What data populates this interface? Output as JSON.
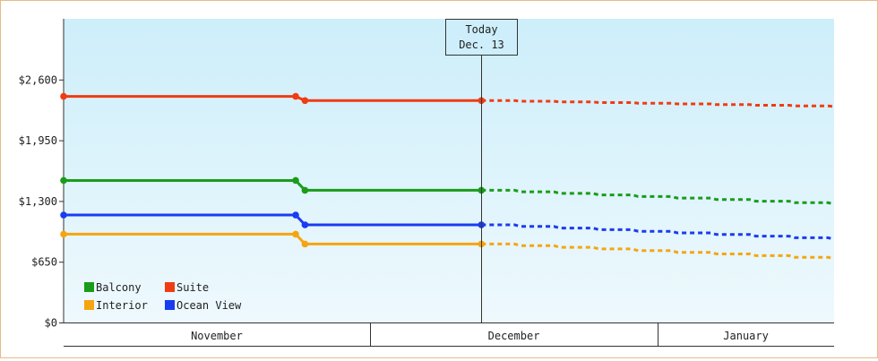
{
  "chart_data": {
    "type": "line",
    "title": "",
    "xlabel": "",
    "ylabel": "",
    "ylim": [
      0,
      3250
    ],
    "y_ticks": [
      0,
      650,
      1300,
      1950,
      2600
    ],
    "y_tick_labels": [
      "$0",
      "$650",
      "$1,300",
      "$1,950",
      "$2,600"
    ],
    "x_range": [
      "2023-10-29",
      "2024-01-20"
    ],
    "month_labels": [
      {
        "label": "November",
        "start": "2023-10-29",
        "end": "2023-11-30"
      },
      {
        "label": "December",
        "start": "2023-12-01",
        "end": "2023-12-31"
      },
      {
        "label": "January",
        "start": "2024-01-01",
        "end": "2024-01-20"
      }
    ],
    "today": {
      "line1": "Today",
      "line2": "Dec. 13",
      "date": "2023-12-13"
    },
    "grid": false,
    "legend_position": "bottom-left",
    "series": [
      {
        "name": "Suite",
        "color": "#f03c12",
        "actual": [
          [
            "2023-10-29",
            2420
          ],
          [
            "2023-11-23",
            2420
          ],
          [
            "2023-11-24",
            2375
          ],
          [
            "2023-12-13",
            2375
          ]
        ],
        "forecast": [
          [
            "2023-12-13",
            2375
          ],
          [
            "2024-01-20",
            2310
          ]
        ]
      },
      {
        "name": "Balcony",
        "color": "#1a9c1a",
        "actual": [
          [
            "2023-10-29",
            1520
          ],
          [
            "2023-11-23",
            1520
          ],
          [
            "2023-11-24",
            1415
          ],
          [
            "2023-12-13",
            1415
          ]
        ],
        "forecast": [
          [
            "2023-12-13",
            1415
          ],
          [
            "2024-01-20",
            1265
          ]
        ]
      },
      {
        "name": "Ocean View",
        "color": "#1a3cf0",
        "actual": [
          [
            "2023-10-29",
            1150
          ],
          [
            "2023-11-23",
            1150
          ],
          [
            "2023-11-24",
            1045
          ],
          [
            "2023-12-13",
            1045
          ]
        ],
        "forecast": [
          [
            "2023-12-13",
            1045
          ],
          [
            "2024-01-20",
            890
          ]
        ]
      },
      {
        "name": "Interior",
        "color": "#f5a511",
        "actual": [
          [
            "2023-10-29",
            945
          ],
          [
            "2023-11-23",
            945
          ],
          [
            "2023-11-24",
            840
          ],
          [
            "2023-12-13",
            840
          ]
        ],
        "forecast": [
          [
            "2023-12-13",
            840
          ],
          [
            "2024-01-20",
            680
          ]
        ]
      }
    ],
    "legend": [
      {
        "name": "Balcony",
        "color": "#1a9c1a"
      },
      {
        "name": "Suite",
        "color": "#f03c12"
      },
      {
        "name": "Interior",
        "color": "#f5a511"
      },
      {
        "name": "Ocean View",
        "color": "#1a3cf0"
      }
    ]
  }
}
